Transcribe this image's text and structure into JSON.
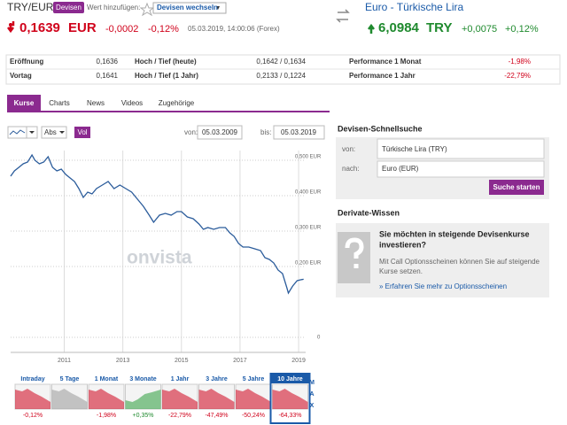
{
  "header": {
    "pair": "TRY/EUR",
    "badge": "Devisen",
    "add_label": "Wert hinzufügen:",
    "dropdown": "Devisen wechseln",
    "right_title": "Euro - Türkische Lira"
  },
  "quote_left": {
    "price": "0,1639",
    "currency": "EUR",
    "change": "-0,0002",
    "change_pct": "-0,12%",
    "timestamp": "05.03.2019, 14:00:06 (Forex)"
  },
  "quote_right": {
    "price": "6,0984",
    "currency": "TRY",
    "change": "+0,0075",
    "change_pct": "+0,12%"
  },
  "stats": {
    "rows": [
      [
        "Eröffnung",
        "0,1636",
        "Hoch / Tief (heute)",
        "0,1642 / 0,1634",
        "Performance 1 Monat",
        "-1,98%"
      ],
      [
        "Vortag",
        "0,1641",
        "Hoch / Tief (1 Jahr)",
        "0,2133 / 0,1224",
        "Performance 1 Jahr",
        "-22,79%"
      ]
    ]
  },
  "tabs": [
    "Kurse",
    "Charts",
    "News",
    "Videos",
    "Zugehörige"
  ],
  "controls": {
    "mode": "Abs",
    "volume": "Vol",
    "from_label": "von:",
    "from": "05.03.2009",
    "to_label": "bis:",
    "to": "05.03.2019"
  },
  "chart": {
    "type": "line",
    "watermark": "onvista",
    "color": "#2b5c9b",
    "grid": true,
    "x": [
      2009.17,
      2009.3,
      2009.45,
      2009.6,
      2009.75,
      2009.9,
      2010.0,
      2010.15,
      2010.3,
      2010.45,
      2010.6,
      2010.75,
      2010.9,
      2011.05,
      2011.2,
      2011.35,
      2011.5,
      2011.65,
      2011.8,
      2011.95,
      2012.1,
      2012.3,
      2012.5,
      2012.7,
      2012.9,
      2013.1,
      2013.3,
      2013.5,
      2013.7,
      2013.9,
      2014.05,
      2014.25,
      2014.45,
      2014.65,
      2014.85,
      2015.0,
      2015.2,
      2015.4,
      2015.6,
      2015.75,
      2015.9,
      2016.1,
      2016.3,
      2016.5,
      2016.65,
      2016.8,
      2016.95,
      2017.1,
      2017.3,
      2017.5,
      2017.7,
      2017.85,
      2018.0,
      2018.15,
      2018.3,
      2018.45,
      2018.6,
      2018.65,
      2018.8,
      2018.95,
      2019.1,
      2019.17
    ],
    "values": [
      0.455,
      0.47,
      0.48,
      0.49,
      0.495,
      0.515,
      0.5,
      0.49,
      0.495,
      0.51,
      0.48,
      0.47,
      0.475,
      0.46,
      0.45,
      0.44,
      0.42,
      0.395,
      0.41,
      0.405,
      0.42,
      0.43,
      0.44,
      0.42,
      0.43,
      0.42,
      0.41,
      0.39,
      0.37,
      0.345,
      0.325,
      0.345,
      0.35,
      0.345,
      0.355,
      0.355,
      0.34,
      0.335,
      0.32,
      0.305,
      0.31,
      0.305,
      0.31,
      0.31,
      0.295,
      0.285,
      0.265,
      0.255,
      0.255,
      0.25,
      0.245,
      0.225,
      0.22,
      0.21,
      0.19,
      0.18,
      0.14,
      0.125,
      0.145,
      0.16,
      0.163,
      0.164
    ],
    "xlim": [
      2009.17,
      2019.24
    ],
    "xticks": [
      2011,
      2013,
      2015,
      2017,
      2019
    ],
    "ylim": [
      0,
      0.52
    ],
    "yticks": [
      {
        "value": 0.5,
        "label": "0,500 EUR"
      },
      {
        "value": 0.4,
        "label": "0,400 EUR"
      },
      {
        "value": 0.3,
        "label": "0,300 EUR"
      },
      {
        "value": 0.2,
        "label": "0,200 EUR"
      },
      0
    ]
  },
  "performance": {
    "items": [
      {
        "label": "Intraday",
        "change": "-0,12%"
      },
      {
        "label": "5 Tage"
      },
      {
        "label": "1 Monat",
        "change": "-1,98%"
      },
      {
        "label": "3 Monate",
        "change": "+0,35%"
      },
      {
        "label": "1 Jahr",
        "change": "-22,79%"
      },
      {
        "label": "3 Jahre",
        "change": "-47,49%"
      },
      {
        "label": "5 Jahre",
        "change": "-50,24%"
      },
      {
        "label": "10 Jahre",
        "change": "-64,33%"
      }
    ],
    "max": [
      "M",
      "A",
      "X"
    ]
  },
  "quick_search": {
    "title": "Devisen-Schnellsuche",
    "from_label": "von:",
    "from": "Türkische Lira (TRY)",
    "to_label": "nach:",
    "to": "Euro (EUR)",
    "button": "Suche starten"
  },
  "derivatives": {
    "title": "Derivate-Wissen",
    "heading": [
      "Sie möchten in steigende Devisenkurse",
      "investieren?"
    ],
    "text": [
      "Mit Call Optionsscheinen können Sie auf steigende",
      "Kurse setzen."
    ],
    "link": "» Erfahren Sie mehr zu Optionsscheinen"
  }
}
